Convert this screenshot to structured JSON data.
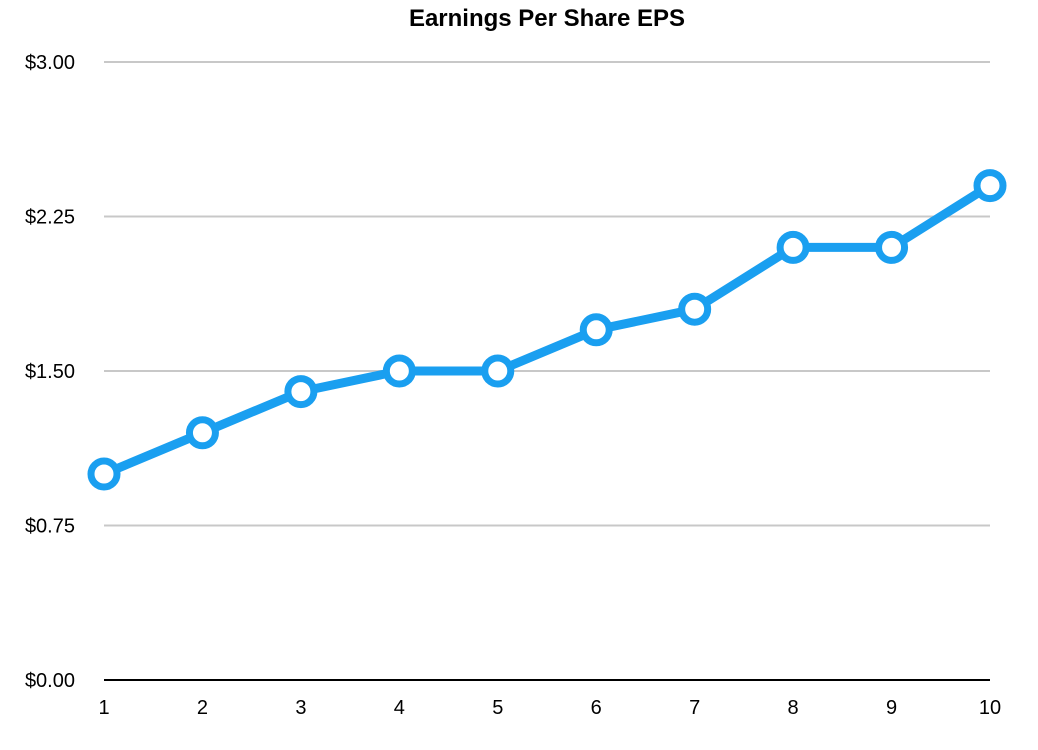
{
  "chart_data": {
    "type": "line",
    "title": "Earnings Per Share EPS",
    "xlabel": "",
    "ylabel": "",
    "x": [
      1,
      2,
      3,
      4,
      5,
      6,
      7,
      8,
      9,
      10
    ],
    "x_tick_labels": [
      "1",
      "2",
      "3",
      "4",
      "5",
      "6",
      "7",
      "8",
      "9",
      "10"
    ],
    "series": [
      {
        "values": [
          1.0,
          1.2,
          1.4,
          1.5,
          1.5,
          1.7,
          1.8,
          2.1,
          2.1,
          2.4
        ],
        "color": "#1a9ff0"
      }
    ],
    "ylim": [
      0,
      3
    ],
    "y_ticks": [
      0,
      0.75,
      1.5,
      2.25,
      3
    ],
    "y_tick_labels": [
      "$0.00",
      "$0.75",
      "$1.50",
      "$2.25",
      "$3.00"
    ],
    "grid": true,
    "legend": "none",
    "colors": {
      "line": "#1a9ff0",
      "grid": "#c8c8c8",
      "axis": "#000000"
    }
  }
}
